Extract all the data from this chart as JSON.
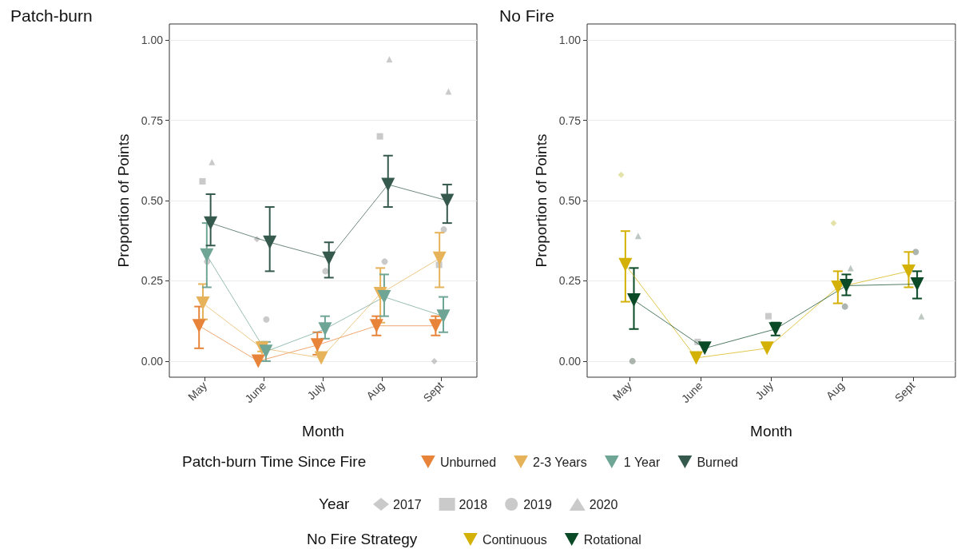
{
  "chart_data": [
    {
      "type": "line",
      "title": "Patch-burn",
      "xlabel": "Month",
      "ylabel": "Proportion of Points",
      "categories": [
        "May",
        "June",
        "July",
        "Aug",
        "Sept"
      ],
      "ylim": [
        -0.05,
        1.05
      ],
      "yticks": [
        {
          "value": 0,
          "label": "0.00"
        },
        {
          "value": 0.25,
          "label": "0.25"
        },
        {
          "value": 0.5,
          "label": "0.50"
        },
        {
          "value": 0.75,
          "label": "0.75"
        },
        {
          "value": 1,
          "label": "1.00"
        }
      ],
      "grid": "y",
      "legend": "bottom",
      "legend_title": "Patch-burn Time Since Fire",
      "annotations": [
        "Year"
      ],
      "marker": "triangle",
      "line_style": "solid",
      "series": [
        {
          "name": "Unburned",
          "color": "#e8843a",
          "values": [
            0.11,
            0.0,
            0.05,
            0.11,
            0.11
          ],
          "errors": [
            [
              0.04,
              0.17
            ],
            null,
            [
              0.02,
              0.09
            ],
            [
              0.08,
              0.14
            ],
            [
              0.08,
              0.14
            ]
          ]
        },
        {
          "name": "2-3 Years",
          "color": "#e6b35a",
          "values": [
            0.18,
            0.04,
            0.01,
            0.21,
            0.32
          ],
          "errors": [
            [
              0.13,
              0.24
            ],
            [
              0.03,
              0.06
            ],
            null,
            [
              0.12,
              0.29
            ],
            [
              0.23,
              0.4
            ]
          ]
        },
        {
          "name": "1 Year",
          "color": "#6fa595",
          "values": [
            0.33,
            0.03,
            0.1,
            0.2,
            0.14
          ],
          "errors": [
            [
              0.23,
              0.43
            ],
            [
              0.0,
              0.06
            ],
            [
              0.07,
              0.14
            ],
            [
              0.14,
              0.27
            ],
            [
              0.09,
              0.2
            ]
          ]
        },
        {
          "name": "Burned",
          "color": "#35594c",
          "values": [
            0.43,
            0.37,
            0.32,
            0.55,
            0.5
          ],
          "errors": [
            [
              0.36,
              0.52
            ],
            [
              0.28,
              0.48
            ],
            [
              0.26,
              0.37
            ],
            [
              0.48,
              0.64
            ],
            [
              0.43,
              0.55
            ]
          ]
        },
        {
          "name": "2017",
          "type": "scatter",
          "marker": "diamond",
          "color": "#b8b8b8",
          "values": [
            null,
            0.38,
            null,
            null,
            0.0
          ]
        },
        {
          "name": "2018",
          "type": "scatter",
          "marker": "square",
          "color": "#b8b8b8",
          "values": [
            0.56,
            null,
            null,
            0.7,
            0.3
          ]
        },
        {
          "name": "2019",
          "type": "scatter",
          "marker": "circle",
          "color": "#b8b8b8",
          "values": [
            0.31,
            0.13,
            0.28,
            0.31,
            0.41
          ]
        },
        {
          "name": "2020",
          "type": "scatter",
          "marker": "triangle",
          "color": "#b8b8b8",
          "values": [
            0.62,
            null,
            null,
            0.94,
            0.84
          ]
        }
      ]
    },
    {
      "type": "line",
      "title": "No Fire",
      "xlabel": "Month",
      "ylabel": "Proportion of Points",
      "categories": [
        "May",
        "June",
        "July",
        "Aug",
        "Sept"
      ],
      "ylim": [
        -0.05,
        1.05
      ],
      "yticks": [
        {
          "value": 0,
          "label": "0.00"
        },
        {
          "value": 0.25,
          "label": "0.25"
        },
        {
          "value": 0.5,
          "label": "0.50"
        },
        {
          "value": 0.75,
          "label": "0.75"
        },
        {
          "value": 1,
          "label": "1.00"
        }
      ],
      "grid": "y",
      "legend": "bottom",
      "legend_title": "No Fire Strategy",
      "marker": "triangle",
      "line_style": "solid",
      "series": [
        {
          "name": "Continuous",
          "color": "#d4b106",
          "values": [
            0.3,
            0.01,
            0.04,
            0.23,
            0.28
          ],
          "errors": [
            [
              0.185,
              0.405
            ],
            null,
            null,
            [
              0.18,
              0.28
            ],
            [
              0.23,
              0.34
            ]
          ]
        },
        {
          "name": "Rotational",
          "color": "#0b4a26",
          "values": [
            0.19,
            0.04,
            0.1,
            0.235,
            0.24
          ],
          "errors": [
            [
              0.1,
              0.29
            ],
            null,
            [
              0.08,
              0.12
            ],
            [
              0.205,
              0.27
            ],
            [
              0.195,
              0.28
            ]
          ]
        },
        {
          "type": "scatter",
          "marker": "diamond",
          "color": "#d9d98c",
          "values": [
            0.58,
            null,
            null,
            0.43,
            null
          ]
        },
        {
          "type": "scatter",
          "marker": "square",
          "color": "#b8b8b8",
          "values": [
            null,
            0.06,
            0.14,
            null,
            null
          ]
        },
        {
          "type": "scatter",
          "marker": "circle",
          "color": "#909c94",
          "values": [
            0.0,
            null,
            null,
            0.17,
            0.34
          ]
        },
        {
          "type": "scatter",
          "marker": "triangle",
          "color": "#a8b4ac",
          "values": [
            0.39,
            null,
            null,
            0.29,
            0.14
          ]
        }
      ]
    }
  ]
}
